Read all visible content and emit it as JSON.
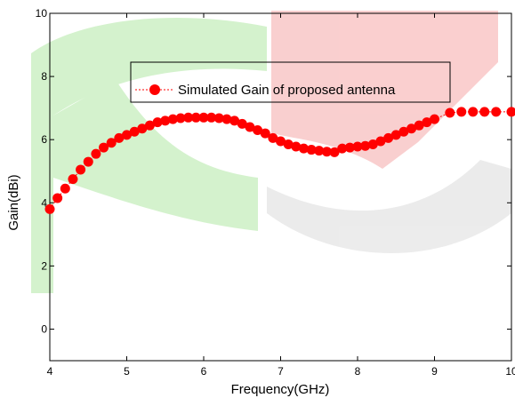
{
  "chart_data": {
    "type": "line",
    "title": "",
    "xlabel": "Frequency(GHz)",
    "ylabel": "Gain(dBi)",
    "xlim": [
      4,
      10
    ],
    "ylim": [
      -1,
      10
    ],
    "x_ticks": [
      "4",
      "5",
      "6",
      "7",
      "8",
      "9",
      "10"
    ],
    "y_ticks": [
      "0",
      "2",
      "4",
      "6",
      "8",
      "10"
    ],
    "x_tick_values": [
      4,
      5,
      6,
      7,
      8,
      9,
      10
    ],
    "y_tick_values": [
      0,
      2,
      4,
      6,
      8,
      10
    ],
    "grid": false,
    "legend_position": "top-center",
    "series": [
      {
        "name": "Simulated Gain of proposed antenna",
        "color": "#ff0000",
        "marker": "circle",
        "line_style": "dotted",
        "x": [
          4.0,
          4.1,
          4.2,
          4.3,
          4.4,
          4.5,
          4.6,
          4.7,
          4.8,
          4.9,
          5.0,
          5.1,
          5.2,
          5.3,
          5.4,
          5.5,
          5.6,
          5.7,
          5.8,
          5.9,
          6.0,
          6.1,
          6.2,
          6.3,
          6.4,
          6.5,
          6.6,
          6.7,
          6.8,
          6.9,
          7.0,
          7.1,
          7.2,
          7.3,
          7.4,
          7.5,
          7.6,
          7.7,
          7.8,
          7.9,
          8.0,
          8.1,
          8.2,
          8.3,
          8.4,
          8.5,
          8.6,
          8.7,
          8.8,
          8.9,
          9.0,
          9.2,
          9.35,
          9.5,
          9.65,
          9.8,
          10.0
        ],
        "y": [
          3.8,
          4.15,
          4.45,
          4.75,
          5.05,
          5.3,
          5.55,
          5.75,
          5.9,
          6.05,
          6.15,
          6.25,
          6.35,
          6.45,
          6.55,
          6.6,
          6.65,
          6.68,
          6.7,
          6.7,
          6.7,
          6.7,
          6.68,
          6.65,
          6.6,
          6.5,
          6.4,
          6.3,
          6.2,
          6.05,
          5.95,
          5.85,
          5.78,
          5.72,
          5.68,
          5.65,
          5.62,
          5.6,
          5.72,
          5.75,
          5.78,
          5.8,
          5.85,
          5.95,
          6.05,
          6.15,
          6.25,
          6.35,
          6.45,
          6.55,
          6.65,
          6.85,
          6.88,
          6.88,
          6.88,
          6.88,
          6.88
        ]
      }
    ]
  },
  "watermark": {
    "colors": [
      "#b2e8a6",
      "#f5a8a8",
      "#dcdcdc"
    ]
  }
}
